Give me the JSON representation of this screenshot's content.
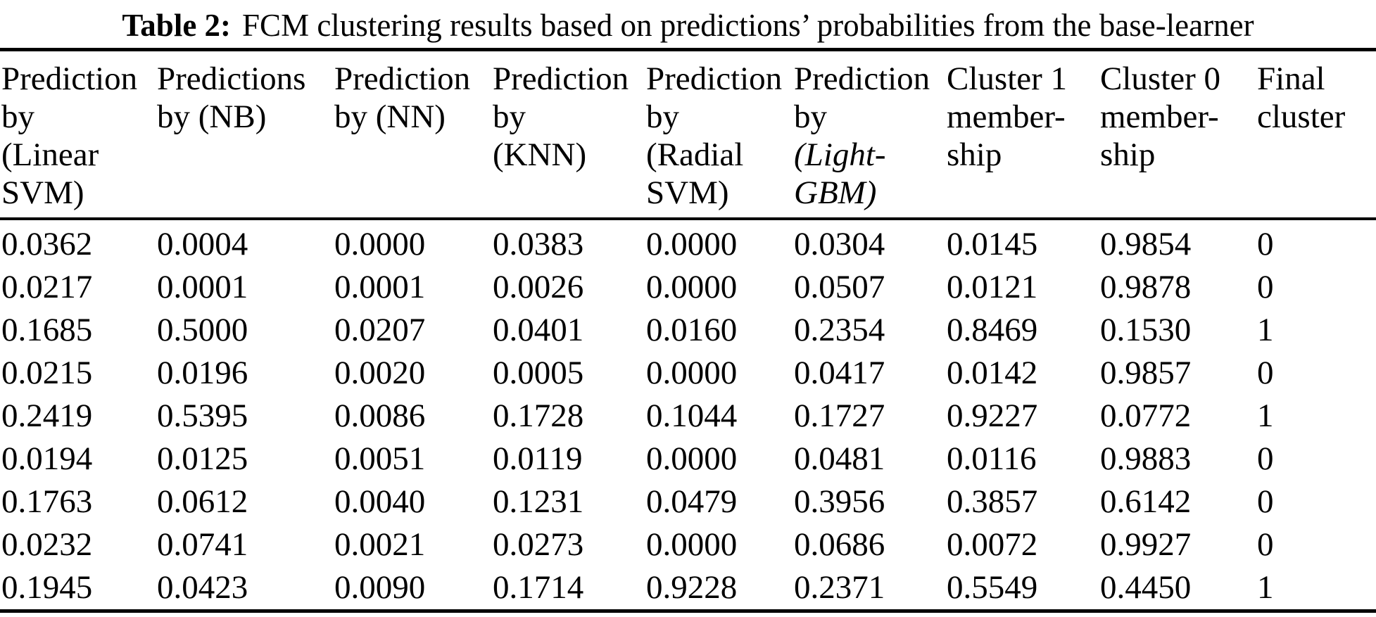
{
  "title": {
    "label": "Table 2:",
    "text": "FCM clustering results based on predictions’ probabilities from the base-learner"
  },
  "table": {
    "columns": [
      {
        "id": "linear-svm",
        "label": "Prediction by (Linear SVM)",
        "lines": [
          "Prediction",
          "by",
          "(Linear",
          "SVM)"
        ]
      },
      {
        "id": "nb",
        "label": "Predictions by (NB)",
        "lines": [
          "Predictions",
          "by (NB)"
        ]
      },
      {
        "id": "nn",
        "label": "Prediction by (NN)",
        "lines": [
          "Prediction",
          "by (NN)"
        ]
      },
      {
        "id": "knn",
        "label": "Prediction by (KNN)",
        "lines": [
          "Prediction",
          "by",
          "(KNN)"
        ]
      },
      {
        "id": "radial-svm",
        "label": "Prediction by (Radial SVM)",
        "lines": [
          "Prediction",
          "by",
          "(Radial",
          "SVM)"
        ]
      },
      {
        "id": "lightgbm",
        "label": "Prediction by (Light-GBM)",
        "lines": [
          "Prediction",
          "by",
          "(Light-",
          "GBM)"
        ],
        "italic_lines": [
          2,
          3
        ]
      },
      {
        "id": "cluster1",
        "label": "Cluster 1 membership",
        "lines": [
          "Cluster 1",
          "member-",
          "ship"
        ]
      },
      {
        "id": "cluster0",
        "label": "Cluster 0 membership",
        "lines": [
          "Cluster 0",
          "member-",
          "ship"
        ]
      },
      {
        "id": "final",
        "label": "Final cluster",
        "lines": [
          "Final",
          "cluster"
        ]
      }
    ],
    "rows": [
      [
        "0.0362",
        "0.0004",
        "0.0000",
        "0.0383",
        "0.0000",
        "0.0304",
        "0.0145",
        "0.9854",
        "0"
      ],
      [
        "0.0217",
        "0.0001",
        "0.0001",
        "0.0026",
        "0.0000",
        "0.0507",
        "0.0121",
        "0.9878",
        "0"
      ],
      [
        "0.1685",
        "0.5000",
        "0.0207",
        "0.0401",
        "0.0160",
        "0.2354",
        "0.8469",
        "0.1530",
        "1"
      ],
      [
        "0.0215",
        "0.0196",
        "0.0020",
        "0.0005",
        "0.0000",
        "0.0417",
        "0.0142",
        "0.9857",
        "0"
      ],
      [
        "0.2419",
        "0.5395",
        "0.0086",
        "0.1728",
        "0.1044",
        "0.1727",
        "0.9227",
        "0.0772",
        "1"
      ],
      [
        "0.0194",
        "0.0125",
        "0.0051",
        "0.0119",
        "0.0000",
        "0.0481",
        "0.0116",
        "0.9883",
        "0"
      ],
      [
        "0.1763",
        "0.0612",
        "0.0040",
        "0.1231",
        "0.0479",
        "0.3956",
        "0.3857",
        "0.6142",
        "0"
      ],
      [
        "0.0232",
        "0.0741",
        "0.0021",
        "0.0273",
        "0.0000",
        "0.0686",
        "0.0072",
        "0.9927",
        "0"
      ],
      [
        "0.1945",
        "0.0423",
        "0.0090",
        "0.1714",
        "0.9228",
        "0.2371",
        "0.5549",
        "0.4450",
        "1"
      ]
    ]
  }
}
